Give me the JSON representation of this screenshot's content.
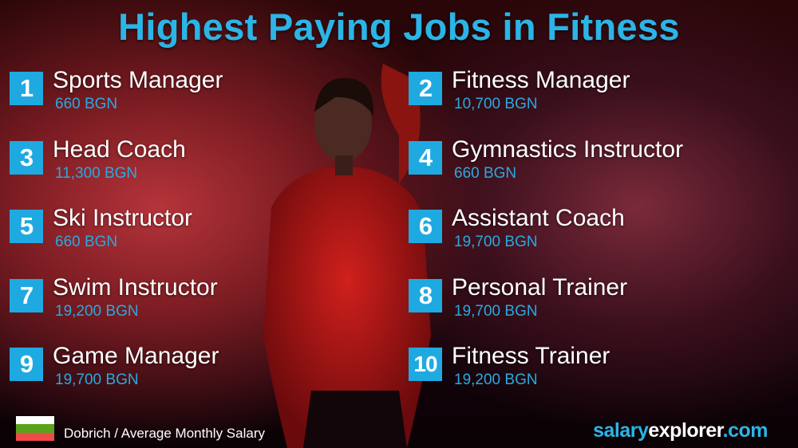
{
  "title": "Highest Paying Jobs in Fitness",
  "jobs": [
    {
      "rank": "1",
      "title": "Sports Manager",
      "salary": "660 BGN"
    },
    {
      "rank": "2",
      "title": "Fitness Manager",
      "salary": "10,700 BGN"
    },
    {
      "rank": "3",
      "title": "Head Coach",
      "salary": "11,300 BGN"
    },
    {
      "rank": "4",
      "title": "Gymnastics Instructor",
      "salary": "660 BGN"
    },
    {
      "rank": "5",
      "title": "Ski Instructor",
      "salary": "660 BGN"
    },
    {
      "rank": "6",
      "title": "Assistant Coach",
      "salary": "19,700 BGN"
    },
    {
      "rank": "7",
      "title": "Swim Instructor",
      "salary": "19,200 BGN"
    },
    {
      "rank": "8",
      "title": "Personal Trainer",
      "salary": "19,700 BGN"
    },
    {
      "rank": "9",
      "title": "Game Manager",
      "salary": "19,700 BGN"
    },
    {
      "rank": "10",
      "title": "Fitness Trainer",
      "salary": "19,200 BGN"
    }
  ],
  "footer": {
    "location": "Dobrich / Average Monthly Salary",
    "brand_a": "salary",
    "brand_b": "explorer",
    "brand_c": ".com",
    "flag_colors": [
      "#ffffff",
      "#00966e",
      "#d62612"
    ]
  },
  "colors": {
    "accent": "#1fa9e1",
    "background": "#2a0608"
  }
}
